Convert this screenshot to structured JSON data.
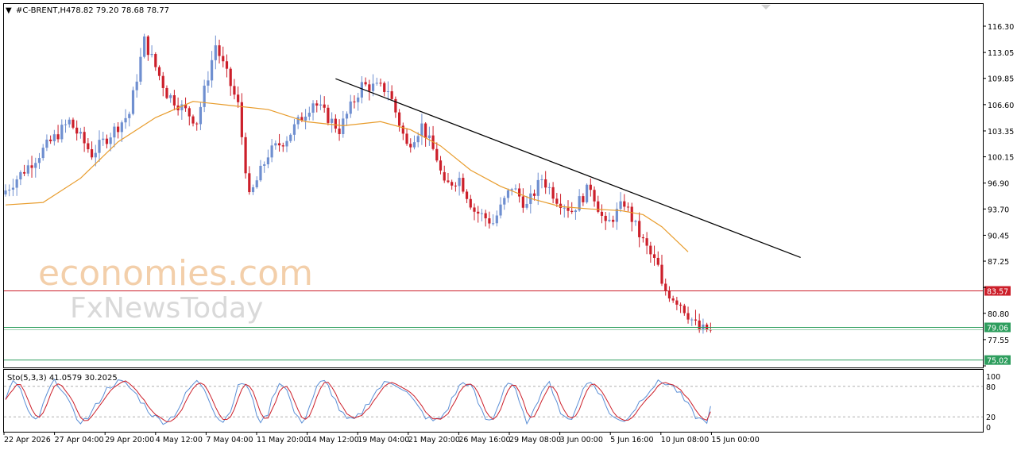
{
  "header": {
    "symbol": "#C-BRENT,H4",
    "ohlc": "78.82 79.20 78.68 78.77"
  },
  "watermark": {
    "line1": "economies.com",
    "line2": "FxNewsToday"
  },
  "colors": {
    "bull": "#6f8fd0",
    "bear": "#cc1f2a",
    "ma": "#e89c2c",
    "trendline": "#000000",
    "resistance": "#cc1f2a",
    "support": "#2e9e5e",
    "stoch_main": "#5b8fd6",
    "stoch_signal": "#cc1f2a"
  },
  "chart_data": [
    {
      "type": "candlestick",
      "title": "#C-BRENT,H4",
      "timeframe": "H4",
      "last_bar": {
        "open": 78.82,
        "high": 79.2,
        "low": 78.68,
        "close": 78.77
      },
      "x_tick_labels": [
        "22 Apr 2026",
        "27 Apr 04:00",
        "29 Apr 20:00",
        "4 May 12:00",
        "7 May 04:00",
        "11 May 20:00",
        "14 May 12:00",
        "19 May 04:00",
        "21 May 20:00",
        "26 May 16:00",
        "29 May 08:00",
        "3 Jun 00:00",
        "5 Jun 16:00",
        "10 Jun 08:00",
        "15 Jun 00:00"
      ],
      "y_tick_labels": [
        "116.30",
        "113.05",
        "109.85",
        "106.60",
        "103.35",
        "100.15",
        "96.90",
        "93.70",
        "90.45",
        "87.25",
        "84.00",
        "80.80",
        "77.55",
        "74.30"
      ],
      "ylim": [
        74.3,
        117.2
      ],
      "grid": false,
      "price_path": [
        [
          0,
          95.5
        ],
        [
          8,
          99.5
        ],
        [
          18,
          104.5
        ],
        [
          24,
          100.5
        ],
        [
          34,
          105.5
        ],
        [
          38,
          114.5
        ],
        [
          44,
          108.0
        ],
        [
          52,
          104.5
        ],
        [
          57,
          114.0
        ],
        [
          63,
          106.5
        ],
        [
          66,
          95.0
        ],
        [
          71,
          100.5
        ],
        [
          76,
          102.5
        ],
        [
          83,
          107.0
        ],
        [
          90,
          103.5
        ],
        [
          96,
          109.0
        ],
        [
          103,
          108.5
        ],
        [
          108,
          101.5
        ],
        [
          112,
          104.0
        ],
        [
          116,
          100.0
        ],
        [
          118,
          96.5
        ],
        [
          122,
          97.5
        ],
        [
          126,
          93.5
        ],
        [
          131,
          92.0
        ],
        [
          136,
          96.5
        ],
        [
          140,
          94.0
        ],
        [
          144,
          97.5
        ],
        [
          148,
          95.0
        ],
        [
          152,
          93.5
        ],
        [
          157,
          96.5
        ],
        [
          161,
          91.5
        ],
        [
          166,
          94.5
        ],
        [
          170,
          90.5
        ],
        [
          173,
          88.0
        ],
        [
          175,
          86.5
        ],
        [
          176,
          84.0
        ],
        [
          181,
          82.0
        ],
        [
          186,
          78.7
        ],
        [
          188,
          78.8
        ]
      ],
      "price_gaps_after_bar": [
        116,
        176
      ],
      "moving_average": {
        "color": "#e89c2c",
        "path": [
          [
            0,
            94.2
          ],
          [
            10,
            94.5
          ],
          [
            20,
            97.5
          ],
          [
            30,
            102.0
          ],
          [
            40,
            105.0
          ],
          [
            50,
            107.0
          ],
          [
            60,
            106.5
          ],
          [
            70,
            106.0
          ],
          [
            80,
            104.5
          ],
          [
            90,
            104.0
          ],
          [
            100,
            104.5
          ],
          [
            108,
            103.5
          ],
          [
            116,
            101.5
          ],
          [
            124,
            98.5
          ],
          [
            132,
            96.5
          ],
          [
            140,
            95.0
          ],
          [
            148,
            94.0
          ],
          [
            156,
            93.7
          ],
          [
            164,
            93.5
          ],
          [
            170,
            93.0
          ],
          [
            175,
            91.5
          ],
          [
            182,
            88.4
          ]
        ]
      },
      "trendline": {
        "color": "#000000",
        "from": [
          88,
          109.8
        ],
        "to": [
          212,
          87.7
        ]
      },
      "horizontal_levels": [
        {
          "label": "83.57",
          "value": 83.57,
          "color": "#cc1f2a"
        },
        {
          "label": "79.06",
          "value": 79.06,
          "color": "#2e9e5e"
        },
        {
          "label": "75.02",
          "value": 75.02,
          "color": "#2e9e5e"
        }
      ]
    },
    {
      "type": "line",
      "title": "Sto(5,3,3) 41.0579 30.2025",
      "indicator": "Stochastic Oscillator",
      "parameters": [
        5,
        3,
        3
      ],
      "series": [
        {
          "name": "main",
          "last": 41.0579,
          "color": "#5b8fd6"
        },
        {
          "name": "signal",
          "last": 30.2025,
          "color": "#cc1f2a"
        }
      ],
      "y_tick_labels": [
        "100",
        "80",
        "20",
        "0"
      ],
      "levels": [
        80,
        20
      ],
      "ylim": [
        0,
        100
      ]
    }
  ]
}
